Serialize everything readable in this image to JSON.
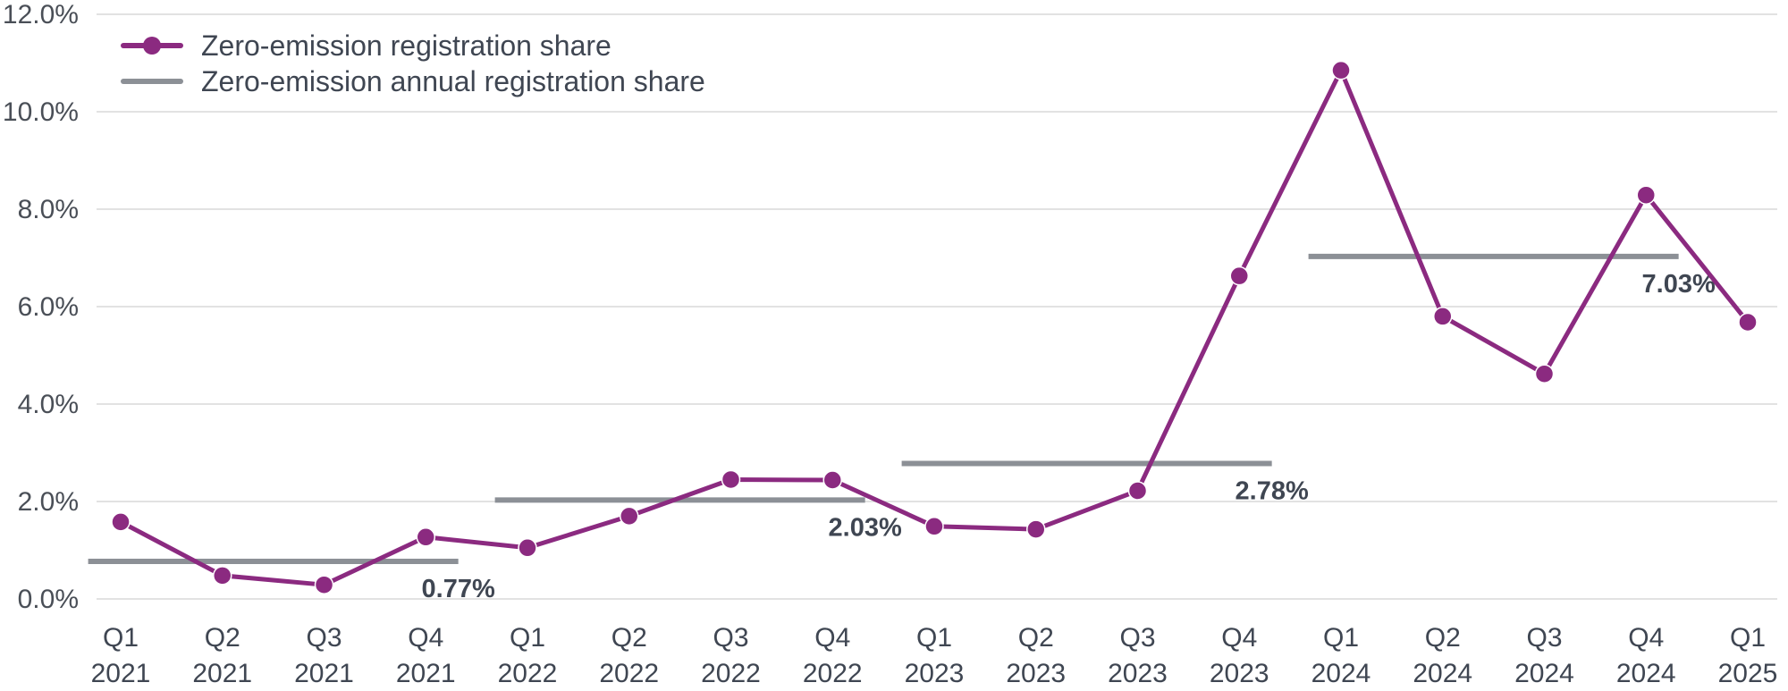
{
  "chart_data": {
    "type": "line",
    "title": "",
    "xlabel": "",
    "ylabel": "",
    "ylim": [
      0,
      12
    ],
    "grid": true,
    "legend_position": "top-left",
    "y_ticks": [
      "0.0%",
      "2.0%",
      "4.0%",
      "6.0%",
      "8.0%",
      "10.0%",
      "12.0%"
    ],
    "categories": [
      {
        "quarter": "Q1",
        "year": "2021"
      },
      {
        "quarter": "Q2",
        "year": "2021"
      },
      {
        "quarter": "Q3",
        "year": "2021"
      },
      {
        "quarter": "Q4",
        "year": "2021"
      },
      {
        "quarter": "Q1",
        "year": "2022"
      },
      {
        "quarter": "Q2",
        "year": "2022"
      },
      {
        "quarter": "Q3",
        "year": "2022"
      },
      {
        "quarter": "Q4",
        "year": "2022"
      },
      {
        "quarter": "Q1",
        "year": "2023"
      },
      {
        "quarter": "Q2",
        "year": "2023"
      },
      {
        "quarter": "Q3",
        "year": "2023"
      },
      {
        "quarter": "Q4",
        "year": "2023"
      },
      {
        "quarter": "Q1",
        "year": "2024"
      },
      {
        "quarter": "Q2",
        "year": "2024"
      },
      {
        "quarter": "Q3",
        "year": "2024"
      },
      {
        "quarter": "Q4",
        "year": "2024"
      },
      {
        "quarter": "Q1",
        "year": "2025"
      }
    ],
    "series": [
      {
        "name": "Zero-emission registration share",
        "color": "#8b2a80",
        "values": [
          1.58,
          0.48,
          0.29,
          1.27,
          1.05,
          1.7,
          2.45,
          2.44,
          1.49,
          1.43,
          2.22,
          6.63,
          10.85,
          5.8,
          4.62,
          8.29,
          5.68
        ]
      }
    ],
    "annual_series": {
      "name": "Zero-emission annual registration share",
      "color": "#8c9096",
      "segments": [
        {
          "start": 0,
          "end": 3,
          "value": 0.77,
          "label": "0.77%"
        },
        {
          "start": 4,
          "end": 7,
          "value": 2.03,
          "label": "2.03%"
        },
        {
          "start": 8,
          "end": 11,
          "value": 2.78,
          "label": "2.78%"
        },
        {
          "start": 12,
          "end": 15,
          "value": 7.03,
          "label": "7.03%"
        }
      ]
    }
  }
}
